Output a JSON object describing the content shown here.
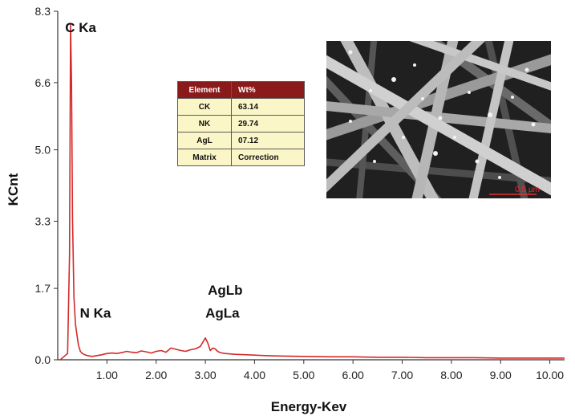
{
  "chart_data": {
    "type": "line",
    "xlabel": "Energy-Kev",
    "ylabel": "KCnt",
    "xlim": [
      0,
      10.3
    ],
    "ylim": [
      0,
      8.3
    ],
    "x_ticks": [
      "1.00",
      "2.00",
      "3.00",
      "4.00",
      "5.00",
      "6.00",
      "7.00",
      "8.00",
      "9.00",
      "10.00"
    ],
    "y_ticks": [
      "0.0",
      "1.7",
      "3.3",
      "5.0",
      "6.6",
      "8.3"
    ],
    "grid": false,
    "series_color": "#d42a2a",
    "series": [
      {
        "x": [
          0.05,
          0.2,
          0.24,
          0.26,
          0.28,
          0.3,
          0.33,
          0.36,
          0.39,
          0.42,
          0.46,
          0.5,
          0.55,
          0.6,
          0.7,
          0.8,
          0.9,
          1.0,
          1.1,
          1.2,
          1.3,
          1.4,
          1.5,
          1.6,
          1.7,
          1.8,
          1.9,
          2.0,
          2.1,
          2.2,
          2.3,
          2.4,
          2.5,
          2.6,
          2.7,
          2.8,
          2.9,
          2.95,
          3.0,
          3.05,
          3.1,
          3.15,
          3.2,
          3.25,
          3.3,
          3.4,
          3.5,
          3.6,
          3.8,
          4.0,
          4.2,
          4.5,
          5.0,
          5.5,
          6.0,
          6.5,
          7.0,
          7.5,
          8.0,
          8.5,
          9.0,
          9.5,
          10.0,
          10.3
        ],
        "y": [
          0.0,
          0.15,
          2.5,
          7.99,
          6.6,
          3.4,
          1.5,
          0.85,
          0.6,
          0.35,
          0.2,
          0.15,
          0.12,
          0.1,
          0.08,
          0.1,
          0.12,
          0.15,
          0.16,
          0.15,
          0.17,
          0.2,
          0.18,
          0.17,
          0.21,
          0.19,
          0.16,
          0.2,
          0.22,
          0.18,
          0.28,
          0.25,
          0.22,
          0.2,
          0.24,
          0.26,
          0.32,
          0.42,
          0.52,
          0.4,
          0.22,
          0.28,
          0.26,
          0.2,
          0.17,
          0.15,
          0.14,
          0.13,
          0.12,
          0.11,
          0.1,
          0.09,
          0.08,
          0.07,
          0.07,
          0.06,
          0.06,
          0.05,
          0.05,
          0.05,
          0.04,
          0.04,
          0.04,
          0.04
        ]
      }
    ],
    "annotations": [
      {
        "text": "C  Ka",
        "x": 0.15,
        "y": 7.8
      },
      {
        "text": "N  Ka",
        "x": 0.45,
        "y": 1.0
      },
      {
        "text": "AgLa",
        "x": 3.0,
        "y": 1.0
      },
      {
        "text": "AgLb",
        "x": 3.05,
        "y": 1.55
      }
    ]
  },
  "composition_table": {
    "headers": [
      "Element",
      "Wt%"
    ],
    "rows": [
      [
        "CK",
        "63.14"
      ],
      [
        "NK",
        "29.74"
      ],
      [
        "AgL",
        "07.12"
      ],
      [
        "Matrix",
        "Correction"
      ]
    ]
  },
  "sem_image": {
    "scale_bar_label": "0.5 µm",
    "scale_bar_color": "#e23030"
  }
}
